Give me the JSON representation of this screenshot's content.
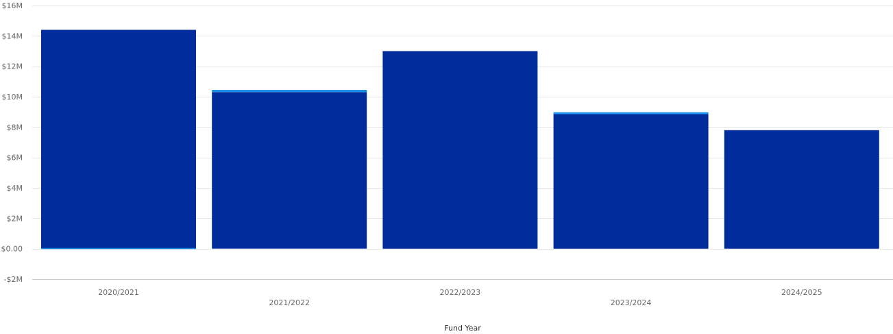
{
  "chart_data": {
    "type": "bar",
    "stacked": true,
    "xlabel": "Fund Year",
    "ylabel": "",
    "ylim": [
      -2000000,
      16000000
    ],
    "y_ticks": [
      -2000000,
      0,
      2000000,
      4000000,
      6000000,
      8000000,
      10000000,
      12000000,
      14000000,
      16000000
    ],
    "y_tick_labels": [
      "-$2M",
      "$0.00",
      "$2M",
      "$4M",
      "$6M",
      "$8M",
      "$10M",
      "$12M",
      "$14M",
      "$16M"
    ],
    "categories": [
      "2020/2021",
      "2021/2022",
      "2022/2023",
      "2023/2024",
      "2024/2025"
    ],
    "series": [
      {
        "values": [
          14400000,
          10300000,
          13000000,
          8850000,
          7800000
        ],
        "color": "#002d9b"
      },
      {
        "values": [
          0,
          150000,
          0,
          130000,
          0
        ],
        "color": "#1f90e6"
      }
    ],
    "grid": true,
    "legend": "none"
  }
}
